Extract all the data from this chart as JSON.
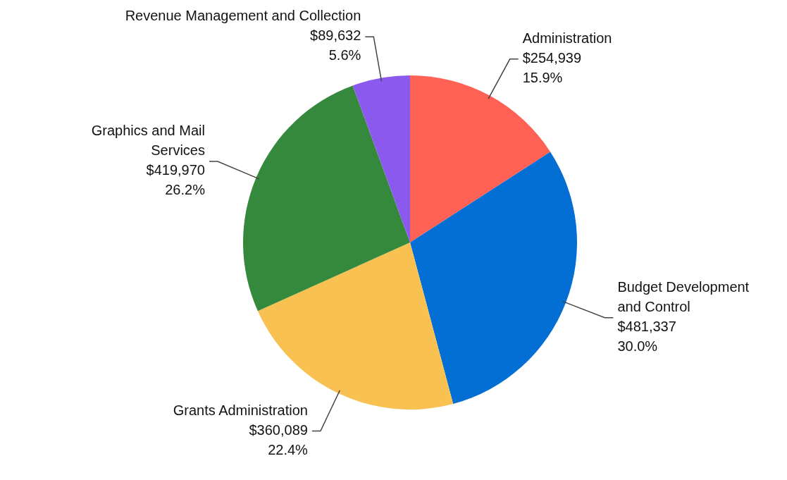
{
  "chart_data": {
    "type": "pie",
    "categories": [
      "Administration",
      "Budget Development and Control",
      "Grants Administration",
      "Graphics and Mail Services",
      "Revenue Management and Collection"
    ],
    "values": [
      254939,
      481337,
      360089,
      419970,
      89632
    ],
    "colors": [
      "#ff6155",
      "#036ed3",
      "#f9c152",
      "#34893c",
      "#8c59ef"
    ],
    "value_labels": [
      "$254,939\n15.9%",
      "$481,337\n30.0%",
      "$360,089\n22.4%",
      "$419,970\n26.2%",
      "$89,632\n5.6%"
    ]
  }
}
